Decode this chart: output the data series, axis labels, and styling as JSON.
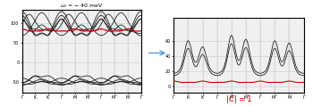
{
  "title_left": "$u_d = -40$ meV",
  "label_C": "$|C| = 1$",
  "x_ticks_labels": [
    "Γ",
    "K",
    "K’",
    "Γ",
    "M",
    "M’",
    "Γ",
    "M’’",
    "M",
    "Γ"
  ],
  "left_yticks": [
    100,
    50,
    0,
    -50
  ],
  "right_yticks": [
    60,
    40,
    20,
    0
  ],
  "left_ylim": [
    -75,
    135
  ],
  "right_ylim": [
    -8,
    90
  ],
  "bg_color": "#f0f0f0",
  "black_line_color": "#111111",
  "red_line_color": "#cc0000",
  "grid_color": "#cccccc",
  "arrow_color": "#5b9bd5",
  "white": "#ffffff"
}
